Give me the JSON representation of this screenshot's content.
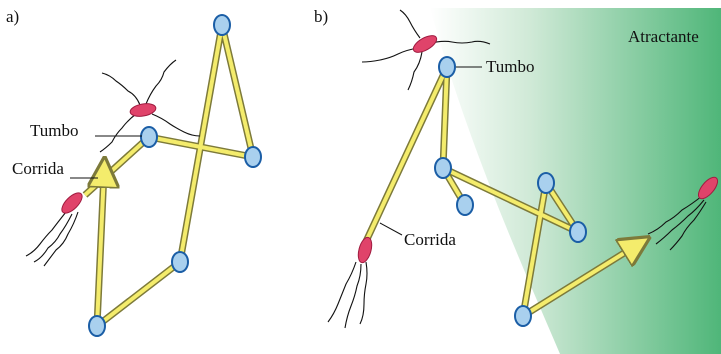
{
  "panel_a": {
    "label": "a)",
    "tumble_label": "Tumbo",
    "run_label": "Corrida"
  },
  "panel_b": {
    "label": "b)",
    "tumble_label": "Tumbo",
    "run_label": "Corrida",
    "attractant_label": "Atractante"
  }
}
